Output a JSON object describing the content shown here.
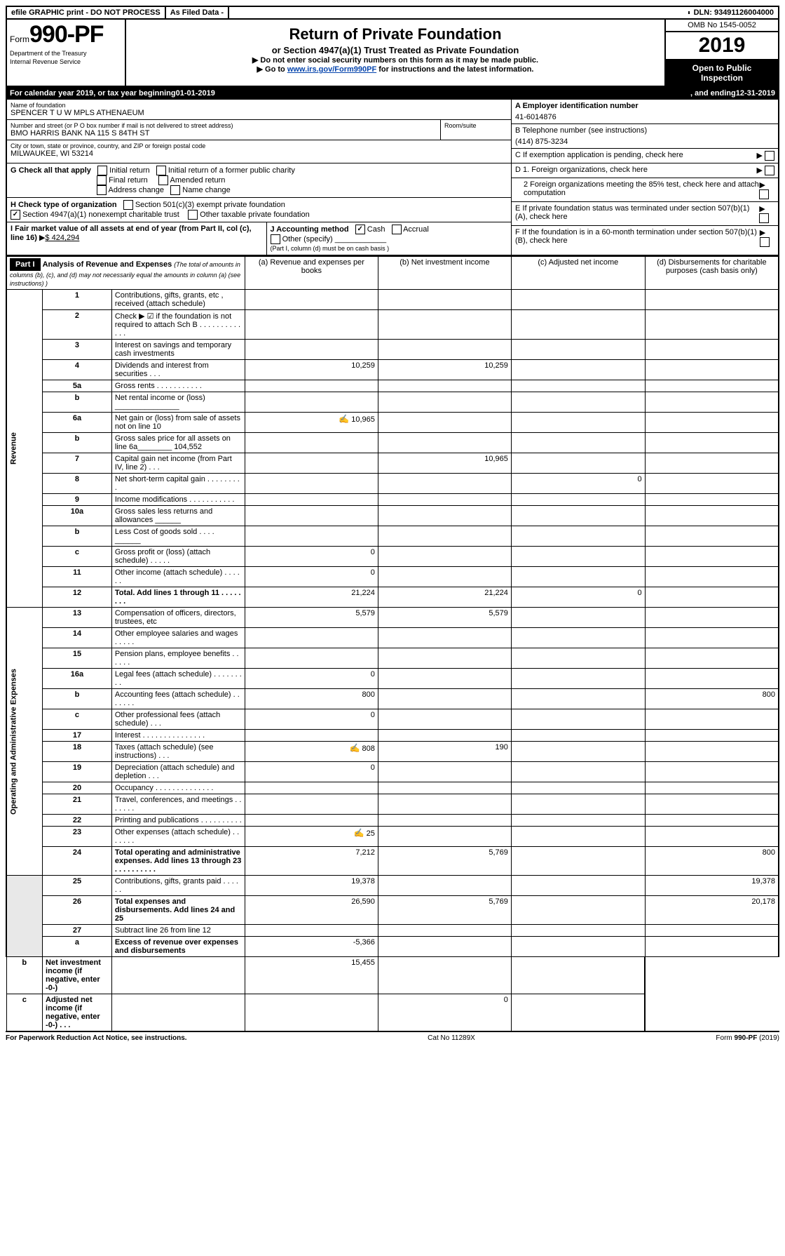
{
  "topbar": {
    "efile": "efile GRAPHIC print - DO NOT PROCESS",
    "asfiled": "As Filed Data -",
    "dln_label": "DLN:",
    "dln": "93491126004000"
  },
  "header": {
    "form_prefix": "Form",
    "form_no": "990-PF",
    "dept1": "Department of the Treasury",
    "dept2": "Internal Revenue Service",
    "title": "Return of Private Foundation",
    "subtitle": "or Section 4947(a)(1) Trust Treated as Private Foundation",
    "notice1": "▶ Do not enter social security numbers on this form as it may be made public.",
    "notice2_pre": "▶ Go to ",
    "notice2_link": "www.irs.gov/Form990PF",
    "notice2_post": " for instructions and the latest information.",
    "omb": "OMB No 1545-0052",
    "year": "2019",
    "open1": "Open to Public",
    "open2": "Inspection"
  },
  "cal": {
    "pre": "For calendar year 2019, or tax year beginning ",
    "begin": "01-01-2019",
    "mid": ", and ending ",
    "end": "12-31-2019"
  },
  "id": {
    "name_label": "Name of foundation",
    "name": "SPENCER T U W MPLS ATHENAEUM",
    "addr_label": "Number and street (or P O  box number if mail is not delivered to street address)",
    "addr": "BMO HARRIS BANK NA 115 S 84TH ST",
    "room_label": "Room/suite",
    "city_label": "City or town, state or province, country, and ZIP or foreign postal code",
    "city": "MILWAUKEE, WI  53214",
    "ein_label": "A Employer identification number",
    "ein": "41-6014876",
    "tel_label": "B Telephone number (see instructions)",
    "tel": "(414) 875-3234",
    "c_label": "C If exemption application is pending, check here"
  },
  "boxes": {
    "g": "G Check all that apply",
    "g_opts": [
      "Initial return",
      "Initial return of a former public charity",
      "Final return",
      "Amended return",
      "Address change",
      "Name change"
    ],
    "h": "H Check type of organization",
    "h1": "Section 501(c)(3) exempt private foundation",
    "h2": "Section 4947(a)(1) nonexempt charitable trust",
    "h3": "Other taxable private foundation",
    "i_pre": "I Fair market value of all assets at end of year (from Part II, col  (c), line 16)",
    "i_val": "$  424,294",
    "j": "J Accounting method",
    "j1": "Cash",
    "j2": "Accrual",
    "j3": "Other (specify)",
    "j_note": "(Part I, column (d) must be on cash basis )",
    "d1": "D 1. Foreign organizations, check here",
    "d2": "2  Foreign organizations meeting the 85% test, check here and attach computation",
    "e": "E  If private foundation status was terminated under section 507(b)(1)(A), check here",
    "f": "F  If the foundation is in a 60-month termination under section 507(b)(1)(B), check here"
  },
  "part1": {
    "label": "Part I",
    "title": "Analysis of Revenue and Expenses",
    "title_note": "(The total of amounts in columns (b), (c), and (d) may not necessarily equal the amounts in column (a) (see instructions) )",
    "col_a": "(a)  Revenue and expenses per books",
    "col_b": "(b)  Net investment income",
    "col_c": "(c)  Adjusted net income",
    "col_d": "(d)  Disbursements for charitable purposes (cash basis only)",
    "rev_label": "Revenue",
    "exp_label": "Operating and Administrative Expenses"
  },
  "lines": [
    {
      "n": "1",
      "d": "Contributions, gifts, grants, etc , received (attach schedule)",
      "a": "",
      "b": "",
      "c": "",
      "dd": ""
    },
    {
      "n": "2",
      "d": "Check ▶ ☑ if the foundation is not required to attach Sch B        .  .  .  .  .  .  .  .  .  .  .  .  .",
      "a": "",
      "b": "",
      "c": "",
      "dd": ""
    },
    {
      "n": "3",
      "d": "Interest on savings and temporary cash investments",
      "a": "",
      "b": "",
      "c": "",
      "dd": ""
    },
    {
      "n": "4",
      "d": "Dividends and interest from securities       .   .   .",
      "a": "10,259",
      "b": "10,259",
      "c": "",
      "dd": ""
    },
    {
      "n": "5a",
      "d": "Gross rents            .  .  .  .  .  .  .  .  .  .  .",
      "a": "",
      "b": "",
      "c": "",
      "dd": ""
    },
    {
      "n": "b",
      "d": "Net rental income or (loss)  _______________",
      "a": "",
      "b": "",
      "c": "",
      "dd": ""
    },
    {
      "n": "6a",
      "d": "Net gain or (loss) from sale of assets not on line 10",
      "a": "10,965",
      "b": "",
      "c": "",
      "dd": "",
      "icon": true
    },
    {
      "n": "b",
      "d": "Gross sales price for all assets on line 6a________ 104,552",
      "a": "",
      "b": "",
      "c": "",
      "dd": ""
    },
    {
      "n": "7",
      "d": "Capital gain net income (from Part IV, line 2)   .   .   .",
      "a": "",
      "b": "10,965",
      "c": "",
      "dd": ""
    },
    {
      "n": "8",
      "d": "Net short-term capital gain   .   .   .   .   .   .   .   .   .",
      "a": "",
      "b": "",
      "c": "0",
      "dd": ""
    },
    {
      "n": "9",
      "d": "Income modifications  .   .   .   .   .   .   .   .   .   .   .",
      "a": "",
      "b": "",
      "c": "",
      "dd": ""
    },
    {
      "n": "10a",
      "d": "Gross sales less returns and allowances  ______",
      "a": "",
      "b": "",
      "c": "",
      "dd": ""
    },
    {
      "n": "b",
      "d": "Less  Cost of goods sold      .   .   .   .   ______",
      "a": "",
      "b": "",
      "c": "",
      "dd": ""
    },
    {
      "n": "c",
      "d": "Gross profit or (loss) (attach schedule)    .   .   .   .   .",
      "a": "0",
      "b": "",
      "c": "",
      "dd": ""
    },
    {
      "n": "11",
      "d": "Other income (attach schedule)      .   .   .   .   .   .",
      "a": "0",
      "b": "",
      "c": "",
      "dd": ""
    },
    {
      "n": "12",
      "d": "Total. Add lines 1 through 11    .   .   .   .   .   .   .   .",
      "a": "21,224",
      "b": "21,224",
      "c": "0",
      "dd": "",
      "bold": true
    },
    {
      "n": "13",
      "d": "Compensation of officers, directors, trustees, etc",
      "a": "5,579",
      "b": "5,579",
      "c": "",
      "dd": ""
    },
    {
      "n": "14",
      "d": "Other employee salaries and wages     .   .   .   .   .",
      "a": "",
      "b": "",
      "c": "",
      "dd": ""
    },
    {
      "n": "15",
      "d": "Pension plans, employee benefits   .   .   .   .   .   .",
      "a": "",
      "b": "",
      "c": "",
      "dd": ""
    },
    {
      "n": "16a",
      "d": "Legal fees (attach schedule)  .   .   .   .   .   .   .   .   .",
      "a": "0",
      "b": "",
      "c": "",
      "dd": ""
    },
    {
      "n": "b",
      "d": "Accounting fees (attach schedule)  .   .   .   .   .   .   .",
      "a": "800",
      "b": "",
      "c": "",
      "dd": "800"
    },
    {
      "n": "c",
      "d": "Other professional fees (attach schedule)    .   .   .",
      "a": "0",
      "b": "",
      "c": "",
      "dd": ""
    },
    {
      "n": "17",
      "d": "Interest   .   .   .   .   .   .   .   .   .   .   .   .   .   .   .",
      "a": "",
      "b": "",
      "c": "",
      "dd": ""
    },
    {
      "n": "18",
      "d": "Taxes (attach schedule) (see instructions)      .   .   .",
      "a": "808",
      "b": "190",
      "c": "",
      "dd": "",
      "icon": true
    },
    {
      "n": "19",
      "d": "Depreciation (attach schedule) and depletion    .   .   .",
      "a": "0",
      "b": "",
      "c": "",
      "dd": ""
    },
    {
      "n": "20",
      "d": "Occupancy    .   .   .   .   .   .   .   .   .   .   .   .   .   .",
      "a": "",
      "b": "",
      "c": "",
      "dd": ""
    },
    {
      "n": "21",
      "d": "Travel, conferences, and meetings  .   .   .   .   .   .   .",
      "a": "",
      "b": "",
      "c": "",
      "dd": ""
    },
    {
      "n": "22",
      "d": "Printing and publications  .   .   .   .   .   .   .   .   .   .",
      "a": "",
      "b": "",
      "c": "",
      "dd": ""
    },
    {
      "n": "23",
      "d": "Other expenses (attach schedule)  .   .   .   .   .   .   .",
      "a": "25",
      "b": "",
      "c": "",
      "dd": "",
      "icon": true
    },
    {
      "n": "24",
      "d": "Total operating and administrative expenses. Add lines 13 through 23   .   .   .   .   .   .   .   .   .   .",
      "a": "7,212",
      "b": "5,769",
      "c": "",
      "dd": "800",
      "bold": true
    },
    {
      "n": "25",
      "d": "Contributions, gifts, grants paid       .   .   .   .   .   .",
      "a": "19,378",
      "b": "",
      "c": "",
      "dd": "19,378"
    },
    {
      "n": "26",
      "d": "Total expenses and disbursements. Add lines 24 and 25",
      "a": "26,590",
      "b": "5,769",
      "c": "",
      "dd": "20,178",
      "bold": true
    },
    {
      "n": "27",
      "d": "Subtract line 26 from line 12",
      "a": "",
      "b": "",
      "c": "",
      "dd": ""
    },
    {
      "n": "a",
      "d": "Excess of revenue over expenses and disbursements",
      "a": "-5,366",
      "b": "",
      "c": "",
      "dd": "",
      "bold": true
    },
    {
      "n": "b",
      "d": "Net investment income (if negative, enter -0-)",
      "a": "",
      "b": "15,455",
      "c": "",
      "dd": "",
      "bold": true
    },
    {
      "n": "c",
      "d": "Adjusted net income (if negative, enter -0-)   .   .   .",
      "a": "",
      "b": "",
      "c": "0",
      "dd": "",
      "bold": true
    }
  ],
  "footer": {
    "left": "For Paperwork Reduction Act Notice, see instructions.",
    "mid": "Cat  No  11289X",
    "right": "Form 990-PF (2019)"
  },
  "colors": {
    "black": "#000000",
    "white": "#ffffff",
    "grey": "#e8e8e8",
    "link": "#0645ad"
  }
}
